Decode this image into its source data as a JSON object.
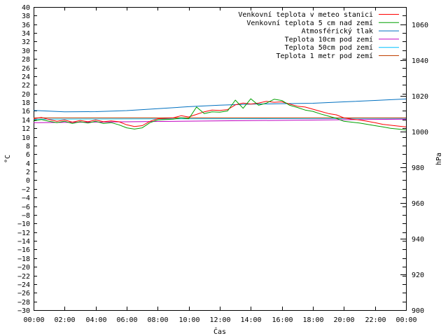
{
  "chart_data": {
    "type": "line",
    "xlabel": "Čas",
    "ylabel": "°C",
    "y2label": "hPa",
    "x_ticks": [
      "00:00",
      "02:00",
      "04:00",
      "06:00",
      "08:00",
      "10:00",
      "12:00",
      "14:00",
      "16:00",
      "18:00",
      "20:00",
      "22:00",
      "00:00"
    ],
    "xlim": [
      0,
      24
    ],
    "ylim": [
      -30,
      40
    ],
    "y_ticks": [
      40,
      38,
      36,
      34,
      32,
      30,
      28,
      26,
      24,
      22,
      20,
      18,
      16,
      14,
      12,
      10,
      8,
      6,
      4,
      2,
      0,
      -2,
      -4,
      -6,
      -8,
      -10,
      -12,
      -14,
      -16,
      -18,
      -20,
      -22,
      -24,
      -26,
      -28,
      -30
    ],
    "y2lim": [
      900,
      1070
    ],
    "y2_ticks": [
      1060,
      1040,
      1020,
      1000,
      980,
      960,
      940,
      920,
      900
    ],
    "legend_position": "top-right",
    "grid": false,
    "series": [
      {
        "name": "Venkovní teplota v meteo stanici",
        "color": "#ff0000",
        "axis": "y1",
        "x": [
          0,
          0.5,
          1,
          1.5,
          2,
          2.5,
          3,
          3.5,
          4,
          4.5,
          5,
          5.5,
          6,
          6.5,
          7,
          7.5,
          8,
          8.5,
          9,
          9.5,
          10,
          10.5,
          11,
          11.5,
          12,
          12.5,
          13,
          13.5,
          14,
          14.5,
          15,
          15.5,
          16,
          16.5,
          17,
          17.5,
          18,
          18.5,
          19,
          19.5,
          20,
          20.5,
          21,
          21.5,
          22,
          22.5,
          23,
          23.5,
          24
        ],
        "y": [
          14.2,
          14.5,
          14,
          13.6,
          13.9,
          13.4,
          13.8,
          13.5,
          13.9,
          13.5,
          13.7,
          13.5,
          12.8,
          12.4,
          12.6,
          13.6,
          14.2,
          14.3,
          14.4,
          14.9,
          14.6,
          15.2,
          15.8,
          16.2,
          16.1,
          16.3,
          17.4,
          17.8,
          17.6,
          17.8,
          18.2,
          18.0,
          18.1,
          17.6,
          17.1,
          16.9,
          16.4,
          15.9,
          15.4,
          15.1,
          14.4,
          14.1,
          13.9,
          13.6,
          13.3,
          12.9,
          12.7,
          12.5,
          12.3
        ]
      },
      {
        "name": "Venkovní teplota 5 cm nad zemí",
        "color": "#00a000",
        "axis": "y1",
        "x": [
          0,
          0.5,
          1,
          1.5,
          2,
          2.5,
          3,
          3.5,
          4,
          4.5,
          5,
          5.5,
          6,
          6.5,
          7,
          7.5,
          8,
          8.5,
          9,
          9.5,
          10,
          10.5,
          11,
          11.5,
          12,
          12.5,
          13,
          13.5,
          14,
          14.5,
          15,
          15.5,
          16,
          16.5,
          17,
          17.5,
          18,
          18.5,
          19,
          19.5,
          20,
          20.5,
          21,
          21.5,
          22,
          22.5,
          23,
          23.5,
          24
        ],
        "y": [
          13.7,
          14.0,
          13.6,
          13.3,
          13.6,
          13.1,
          13.5,
          13.2,
          13.6,
          13.1,
          13.3,
          12.8,
          12.1,
          11.8,
          12.1,
          13.3,
          13.9,
          14.0,
          14.1,
          14.4,
          14.2,
          16.9,
          15.4,
          15.8,
          15.7,
          16.0,
          18.5,
          16.6,
          18.8,
          17.3,
          17.8,
          18.7,
          18.4,
          17.3,
          16.8,
          16.2,
          15.9,
          15.3,
          14.8,
          14.3,
          13.6,
          13.4,
          13.2,
          12.9,
          12.6,
          12.3,
          12.0,
          11.8,
          11.6
        ]
      },
      {
        "name": "Atmosférický tlak",
        "color": "#0070c0",
        "axis": "y2",
        "x": [
          0,
          2,
          4,
          6,
          8,
          10,
          12,
          14,
          16,
          18,
          20,
          22,
          24
        ],
        "y": [
          1012.0,
          1011.2,
          1011.3,
          1011.9,
          1013.0,
          1014.1,
          1014.9,
          1015.5,
          1015.8,
          1016.0,
          1016.8,
          1017.6,
          1018.4
        ]
      },
      {
        "name": "Teplota 10cm pod zemí",
        "color": "#c000c0",
        "axis": "y1",
        "x": [
          0,
          24
        ],
        "y": [
          13.3,
          14.1
        ]
      },
      {
        "name": "Teplota 50cm pod zemí",
        "color": "#00c0ff",
        "axis": "y1",
        "x": [
          0,
          24
        ],
        "y": [
          14.1,
          14.3
        ]
      },
      {
        "name": "Teplota 1 metr pod zemí",
        "color": "#c04000",
        "axis": "y1",
        "x": [
          0,
          24
        ],
        "y": [
          14.4,
          14.4
        ]
      }
    ]
  }
}
